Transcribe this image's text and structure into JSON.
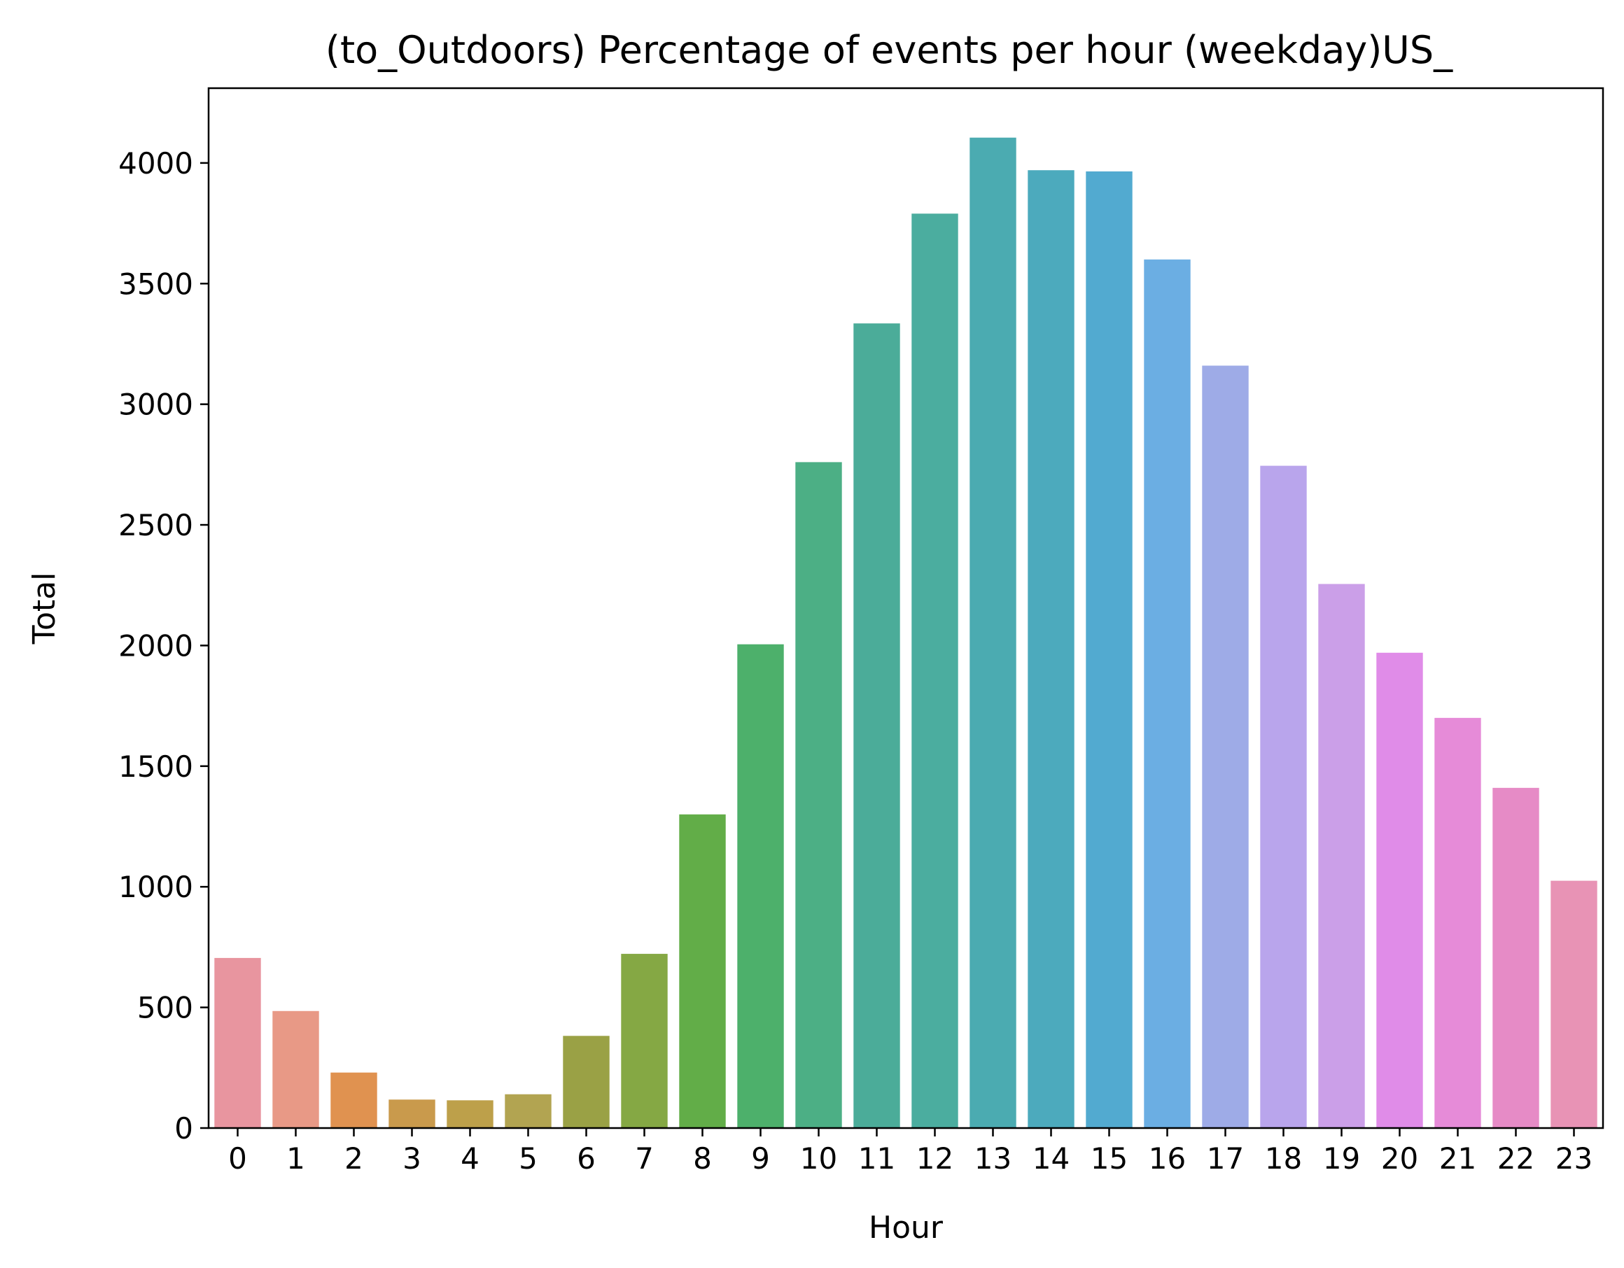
{
  "chart_data": {
    "type": "bar",
    "title": "(to_Outdoors) Percentage of events per hour (weekday)US_",
    "xlabel": "Hour",
    "ylabel": "Total",
    "categories": [
      "0",
      "1",
      "2",
      "3",
      "4",
      "5",
      "6",
      "7",
      "8",
      "9",
      "10",
      "11",
      "12",
      "13",
      "14",
      "15",
      "16",
      "17",
      "18",
      "19",
      "20",
      "21",
      "22",
      "23"
    ],
    "values": [
      705,
      485,
      230,
      118,
      115,
      140,
      382,
      722,
      1300,
      2005,
      2760,
      3335,
      3790,
      4105,
      3970,
      3965,
      3600,
      3160,
      2745,
      2255,
      1970,
      1700,
      1410,
      1025
    ],
    "colors": [
      "#e8959f",
      "#e89986",
      "#e09250",
      "#c99a4c",
      "#bda04a",
      "#b2a451",
      "#9aa145",
      "#85a844",
      "#62ad48",
      "#4db06b",
      "#4caf85",
      "#4bac99",
      "#4bad9f",
      "#4babb1",
      "#4caabd",
      "#52aad0",
      "#6baee3",
      "#9eabe7",
      "#b9a5ec",
      "#cb9fe8",
      "#e08ce8",
      "#e68bd8",
      "#e68bc6",
      "#e893b5"
    ],
    "yticks": [
      0,
      500,
      1000,
      1500,
      2000,
      2500,
      3000,
      3500,
      4000
    ],
    "ylim": [
      0,
      4310
    ],
    "grid": false,
    "legend": "none"
  }
}
